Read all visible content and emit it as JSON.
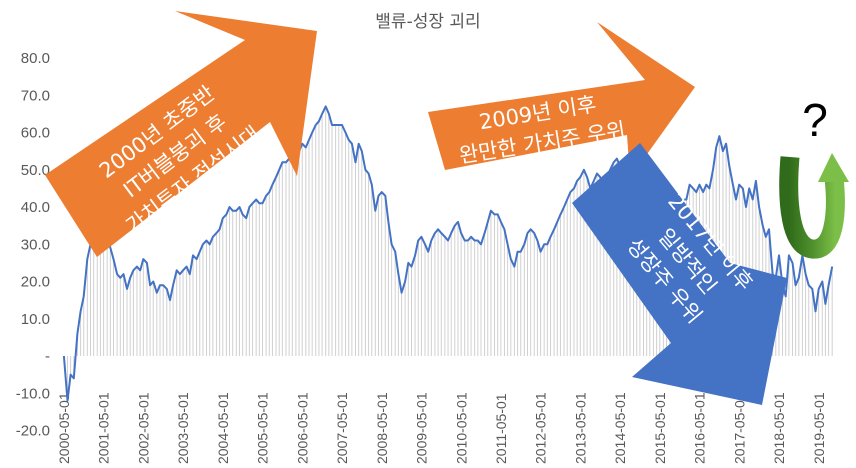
{
  "chart_data": {
    "type": "line",
    "title": "밸류-성장 괴리",
    "xlabel": "",
    "ylabel": "",
    "ylim": [
      -20,
      80
    ],
    "y_ticks": [
      {
        "value": 80,
        "label": "80.0"
      },
      {
        "value": 70,
        "label": "70.0"
      },
      {
        "value": 60,
        "label": "60.0"
      },
      {
        "value": 50,
        "label": "50.0"
      },
      {
        "value": 40,
        "label": "40.0"
      },
      {
        "value": 30,
        "label": "30.0"
      },
      {
        "value": 20,
        "label": "20.0"
      },
      {
        "value": 10,
        "label": "10.0"
      },
      {
        "value": 0,
        "label": "-"
      },
      {
        "value": -10,
        "label": "-10.0"
      },
      {
        "value": -20,
        "label": "-20.0"
      }
    ],
    "x_ticks": [
      "2000-05-01",
      "2001-05-01",
      "2002-05-01",
      "2003-05-01",
      "2004-05-01",
      "2005-05-01",
      "2006-05-01",
      "2007-05-01",
      "2008-05-01",
      "2009-05-01",
      "2010-05-01",
      "2011-05-01",
      "2012-05-01",
      "2013-05-01",
      "2014-05-01",
      "2015-05-01",
      "2016-05-01",
      "2017-05-01",
      "2018-05-01",
      "2019-05-01"
    ],
    "x_start": 2000.333,
    "x_end": 2019.917,
    "grid": false,
    "legend": "none",
    "series": [
      {
        "color": "#4472c4",
        "points": [
          [
            2000.33,
            0
          ],
          [
            2000.42,
            -12
          ],
          [
            2000.5,
            -5
          ],
          [
            2000.58,
            -6
          ],
          [
            2000.67,
            6
          ],
          [
            2000.75,
            12
          ],
          [
            2000.83,
            16
          ],
          [
            2000.92,
            26
          ],
          [
            2001.0,
            30
          ],
          [
            2001.08,
            32
          ],
          [
            2001.17,
            34
          ],
          [
            2001.25,
            36
          ],
          [
            2001.33,
            38
          ],
          [
            2001.42,
            32
          ],
          [
            2001.5,
            29
          ],
          [
            2001.58,
            26
          ],
          [
            2001.67,
            22
          ],
          [
            2001.75,
            21
          ],
          [
            2001.83,
            22
          ],
          [
            2001.92,
            18
          ],
          [
            2002.0,
            21
          ],
          [
            2002.08,
            23
          ],
          [
            2002.17,
            24
          ],
          [
            2002.25,
            23
          ],
          [
            2002.33,
            26
          ],
          [
            2002.42,
            25
          ],
          [
            2002.5,
            19
          ],
          [
            2002.58,
            20
          ],
          [
            2002.67,
            17
          ],
          [
            2002.75,
            19
          ],
          [
            2002.83,
            19
          ],
          [
            2002.92,
            18
          ],
          [
            2003.0,
            15
          ],
          [
            2003.08,
            19
          ],
          [
            2003.17,
            23
          ],
          [
            2003.25,
            22
          ],
          [
            2003.33,
            23
          ],
          [
            2003.42,
            24
          ],
          [
            2003.5,
            22
          ],
          [
            2003.58,
            27
          ],
          [
            2003.67,
            26
          ],
          [
            2003.75,
            28
          ],
          [
            2003.83,
            30
          ],
          [
            2003.92,
            31
          ],
          [
            2004.0,
            30
          ],
          [
            2004.08,
            32
          ],
          [
            2004.17,
            33
          ],
          [
            2004.25,
            34
          ],
          [
            2004.33,
            37
          ],
          [
            2004.42,
            38
          ],
          [
            2004.5,
            40
          ],
          [
            2004.58,
            39
          ],
          [
            2004.67,
            39
          ],
          [
            2004.75,
            40
          ],
          [
            2004.83,
            38
          ],
          [
            2004.92,
            37
          ],
          [
            2005.0,
            40
          ],
          [
            2005.08,
            41
          ],
          [
            2005.17,
            42
          ],
          [
            2005.25,
            41
          ],
          [
            2005.33,
            41
          ],
          [
            2005.42,
            43
          ],
          [
            2005.5,
            44
          ],
          [
            2005.58,
            46
          ],
          [
            2005.67,
            48
          ],
          [
            2005.75,
            50
          ],
          [
            2005.83,
            52
          ],
          [
            2005.92,
            52
          ],
          [
            2006.0,
            53
          ],
          [
            2006.08,
            52
          ],
          [
            2006.17,
            54
          ],
          [
            2006.25,
            55
          ],
          [
            2006.33,
            57
          ],
          [
            2006.42,
            56
          ],
          [
            2006.5,
            58
          ],
          [
            2006.58,
            60
          ],
          [
            2006.67,
            62
          ],
          [
            2006.75,
            63
          ],
          [
            2006.83,
            65
          ],
          [
            2006.92,
            67
          ],
          [
            2007.0,
            65
          ],
          [
            2007.08,
            62
          ],
          [
            2007.17,
            62
          ],
          [
            2007.25,
            62
          ],
          [
            2007.33,
            62
          ],
          [
            2007.42,
            60
          ],
          [
            2007.5,
            58
          ],
          [
            2007.58,
            57
          ],
          [
            2007.67,
            52
          ],
          [
            2007.75,
            57
          ],
          [
            2007.83,
            55
          ],
          [
            2007.92,
            50
          ],
          [
            2008.0,
            49
          ],
          [
            2008.08,
            46
          ],
          [
            2008.17,
            39
          ],
          [
            2008.25,
            43
          ],
          [
            2008.33,
            44
          ],
          [
            2008.42,
            43
          ],
          [
            2008.5,
            36
          ],
          [
            2008.58,
            30
          ],
          [
            2008.67,
            28
          ],
          [
            2008.75,
            22
          ],
          [
            2008.83,
            17
          ],
          [
            2008.92,
            20
          ],
          [
            2009.0,
            25
          ],
          [
            2009.08,
            24
          ],
          [
            2009.17,
            27
          ],
          [
            2009.25,
            31
          ],
          [
            2009.33,
            32
          ],
          [
            2009.42,
            30
          ],
          [
            2009.5,
            28
          ],
          [
            2009.58,
            31
          ],
          [
            2009.67,
            33
          ],
          [
            2009.75,
            34
          ],
          [
            2009.83,
            33
          ],
          [
            2009.92,
            32
          ],
          [
            2010.0,
            31
          ],
          [
            2010.08,
            33
          ],
          [
            2010.17,
            35
          ],
          [
            2010.25,
            36
          ],
          [
            2010.33,
            33
          ],
          [
            2010.42,
            31
          ],
          [
            2010.5,
            31
          ],
          [
            2010.58,
            32
          ],
          [
            2010.67,
            31
          ],
          [
            2010.75,
            31
          ],
          [
            2010.83,
            30
          ],
          [
            2010.92,
            33
          ],
          [
            2011.0,
            36
          ],
          [
            2011.08,
            39
          ],
          [
            2011.17,
            38
          ],
          [
            2011.25,
            38
          ],
          [
            2011.33,
            36
          ],
          [
            2011.42,
            34
          ],
          [
            2011.5,
            30
          ],
          [
            2011.58,
            26
          ],
          [
            2011.67,
            24
          ],
          [
            2011.75,
            28
          ],
          [
            2011.83,
            28
          ],
          [
            2011.92,
            30
          ],
          [
            2012.0,
            33
          ],
          [
            2012.08,
            34
          ],
          [
            2012.17,
            33
          ],
          [
            2012.25,
            31
          ],
          [
            2012.33,
            28
          ],
          [
            2012.42,
            30
          ],
          [
            2012.5,
            30
          ],
          [
            2012.58,
            32
          ],
          [
            2012.67,
            34
          ],
          [
            2012.75,
            36
          ],
          [
            2012.83,
            38
          ],
          [
            2012.92,
            40
          ],
          [
            2013.0,
            42
          ],
          [
            2013.08,
            44
          ],
          [
            2013.17,
            45
          ],
          [
            2013.25,
            47
          ],
          [
            2013.33,
            48
          ],
          [
            2013.42,
            50
          ],
          [
            2013.5,
            48
          ],
          [
            2013.58,
            45
          ],
          [
            2013.67,
            47
          ],
          [
            2013.75,
            49
          ],
          [
            2013.83,
            48
          ],
          [
            2013.92,
            46
          ],
          [
            2014.0,
            47
          ],
          [
            2014.08,
            50
          ],
          [
            2014.17,
            52
          ],
          [
            2014.25,
            53
          ],
          [
            2014.33,
            51
          ],
          [
            2014.42,
            48
          ],
          [
            2014.5,
            45
          ],
          [
            2014.58,
            44
          ],
          [
            2014.67,
            42
          ],
          [
            2014.75,
            40
          ],
          [
            2014.83,
            36
          ],
          [
            2014.92,
            37
          ],
          [
            2015.0,
            38
          ],
          [
            2015.08,
            36
          ],
          [
            2015.17,
            34
          ],
          [
            2015.25,
            32
          ],
          [
            2015.33,
            30
          ],
          [
            2015.42,
            33
          ],
          [
            2015.5,
            36
          ],
          [
            2015.58,
            38
          ],
          [
            2015.67,
            36
          ],
          [
            2015.75,
            37
          ],
          [
            2015.83,
            40
          ],
          [
            2015.92,
            42
          ],
          [
            2016.0,
            42
          ],
          [
            2016.08,
            46
          ],
          [
            2016.17,
            45
          ],
          [
            2016.25,
            44
          ],
          [
            2016.33,
            46
          ],
          [
            2016.42,
            44
          ],
          [
            2016.5,
            46
          ],
          [
            2016.58,
            45
          ],
          [
            2016.67,
            50
          ],
          [
            2016.75,
            56
          ],
          [
            2016.83,
            59
          ],
          [
            2016.92,
            55
          ],
          [
            2017.0,
            57
          ],
          [
            2017.08,
            51
          ],
          [
            2017.17,
            46
          ],
          [
            2017.25,
            42
          ],
          [
            2017.33,
            46
          ],
          [
            2017.42,
            45
          ],
          [
            2017.5,
            40
          ],
          [
            2017.58,
            45
          ],
          [
            2017.67,
            42
          ],
          [
            2017.75,
            47
          ],
          [
            2017.83,
            40
          ],
          [
            2017.92,
            35
          ],
          [
            2018.0,
            32
          ],
          [
            2018.08,
            34
          ],
          [
            2018.17,
            22
          ],
          [
            2018.25,
            21
          ],
          [
            2018.33,
            27
          ],
          [
            2018.42,
            19
          ],
          [
            2018.5,
            16
          ],
          [
            2018.58,
            27
          ],
          [
            2018.67,
            25
          ],
          [
            2018.75,
            19
          ],
          [
            2018.83,
            21
          ],
          [
            2018.92,
            27
          ],
          [
            2019.0,
            22
          ],
          [
            2019.08,
            19
          ],
          [
            2019.17,
            18
          ],
          [
            2019.25,
            12
          ],
          [
            2019.33,
            18
          ],
          [
            2019.42,
            20
          ],
          [
            2019.5,
            14
          ],
          [
            2019.58,
            19
          ],
          [
            2019.67,
            24
          ]
        ]
      }
    ],
    "annotations": [
      {
        "lines": [
          "2000년 초중반",
          "IT버블붕괴 후",
          "가치투자 전성시대"
        ],
        "color": "#ed7d31",
        "kind": "arrow-up-right"
      },
      {
        "lines": [
          "2009년 이후",
          "완만한 가치주 우위"
        ],
        "color": "#ed7d31",
        "kind": "arrow-right"
      },
      {
        "lines": [
          "2017년 이후",
          "일방적인",
          "성장주 우위"
        ],
        "color": "#4472c4",
        "kind": "arrow-down-right"
      },
      {
        "lines": [
          "?"
        ],
        "color": "#70ad47",
        "kind": "u-turn-arrow"
      }
    ]
  }
}
